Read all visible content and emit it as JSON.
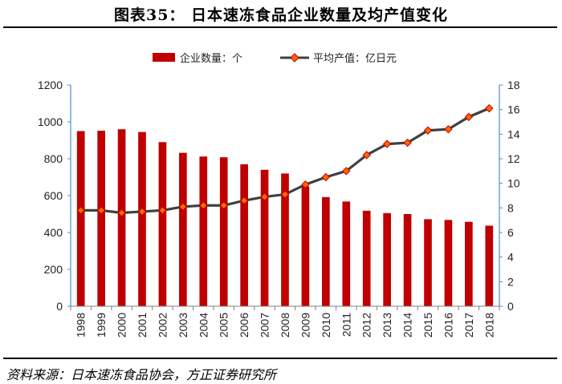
{
  "title": "图表35：  日本速冻食品企业数量及均产值变化",
  "source": "资料来源：日本速冻食品协会，方正证券研究所",
  "colors": {
    "bar": "#c00000",
    "line": "#404040",
    "marker_fill": "#ff6600",
    "marker_stroke": "#c00000",
    "right_axis": "#4a90d9"
  },
  "chart_data": {
    "type": "bar",
    "categories": [
      "1998",
      "1999",
      "2000",
      "2001",
      "2002",
      "2003",
      "2004",
      "2005",
      "2006",
      "2007",
      "2008",
      "2009",
      "2010",
      "2011",
      "2012",
      "2013",
      "2014",
      "2015",
      "2016",
      "2017",
      "2018"
    ],
    "series": [
      {
        "name": "企业数量：个",
        "type": "bar",
        "axis": "left",
        "values": [
          950,
          952,
          960,
          945,
          890,
          832,
          812,
          808,
          770,
          740,
          720,
          650,
          592,
          568,
          518,
          505,
          500,
          472,
          468,
          458,
          437
        ]
      },
      {
        "name": "平均产值：亿日元",
        "type": "line",
        "axis": "right",
        "values": [
          7.8,
          7.8,
          7.6,
          7.7,
          7.8,
          8.1,
          8.2,
          8.2,
          8.6,
          8.9,
          9.1,
          9.9,
          10.5,
          11.0,
          12.3,
          13.2,
          13.3,
          14.3,
          14.4,
          15.4,
          16.1
        ]
      }
    ],
    "y_left": {
      "lim": [
        0,
        1200
      ],
      "ticks": [
        0,
        200,
        400,
        600,
        800,
        1000,
        1200
      ]
    },
    "y_right": {
      "lim": [
        0,
        18
      ],
      "ticks": [
        0,
        2,
        4,
        6,
        8,
        10,
        12,
        14,
        16,
        18
      ]
    },
    "legend": {
      "position": "top-center"
    },
    "grid": false,
    "xlabel": "",
    "ylabel": ""
  }
}
